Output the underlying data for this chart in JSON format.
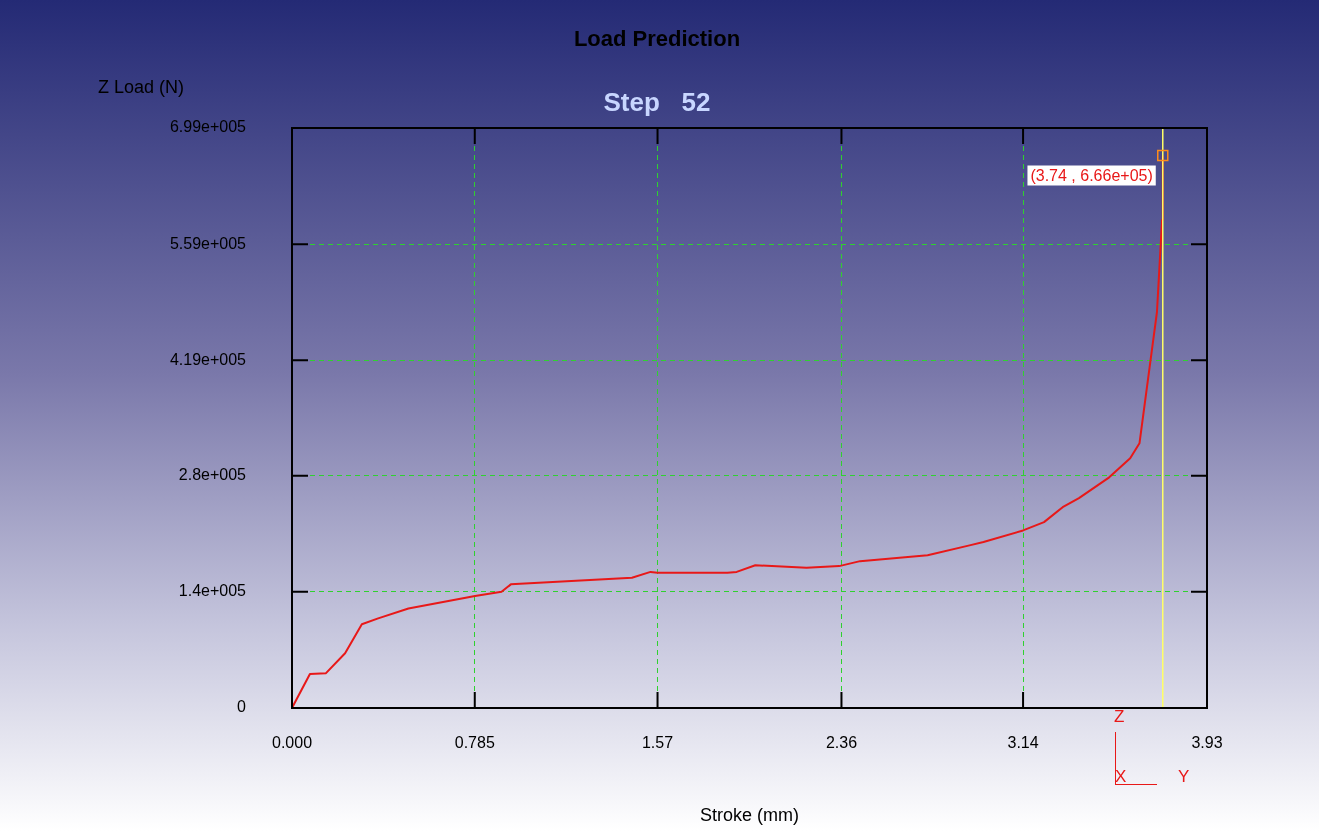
{
  "chart_data": {
    "type": "line",
    "title": "Load Prediction",
    "subtitle": "Step   52",
    "xlabel": "Stroke (mm)",
    "ylabel": "Z Load (N)",
    "series": [
      {
        "color": "#e81818",
        "x": [
          0,
          0.077,
          0.146,
          0.228,
          0.3,
          0.37,
          0.5,
          0.786,
          0.9,
          0.94,
          1.12,
          1.46,
          1.54,
          1.57,
          1.87,
          1.91,
          1.99,
          2.21,
          2.35,
          2.44,
          2.73,
          2.91,
          2.97,
          3.14,
          3.23,
          3.31,
          3.38,
          3.51,
          3.6,
          3.64,
          3.715,
          3.737,
          3.74
        ],
        "values": [
          0,
          41000,
          42000,
          66000,
          101000,
          108000,
          120000,
          135000,
          140000,
          149000,
          152000,
          157000,
          164000,
          163000,
          163000,
          164000,
          172000,
          169000,
          171000,
          177000,
          184000,
          196000,
          200000,
          214000,
          224000,
          242000,
          253000,
          278000,
          301000,
          319000,
          477000,
          588000,
          666000
        ]
      }
    ],
    "xlim": [
      0,
      3.93
    ],
    "ylim": [
      0,
      699000
    ],
    "xticks": [
      {
        "value": 0,
        "label": "0.000"
      },
      0.785,
      1.57,
      2.36,
      3.14,
      3.93
    ],
    "yticks": [
      0,
      {
        "value": 140000,
        "label": "1.4e+005"
      },
      {
        "value": 280000,
        "label": "2.8e+005"
      },
      {
        "value": 419000,
        "label": "4.19e+005"
      },
      {
        "value": 559000,
        "label": "5.59e+005"
      },
      {
        "value": 699000,
        "label": "6.99e+005"
      }
    ],
    "grid": true,
    "legend": false,
    "marker": "none",
    "line_style": "solid",
    "ref_lines": [
      {
        "axis": "x",
        "value": 3.74,
        "color": "#ffff66"
      }
    ],
    "annotations": [
      {
        "text": "(3.74 , 6.66e+05)",
        "x": 3.74,
        "y": 666000
      },
      "Z",
      "X",
      "Y"
    ]
  }
}
